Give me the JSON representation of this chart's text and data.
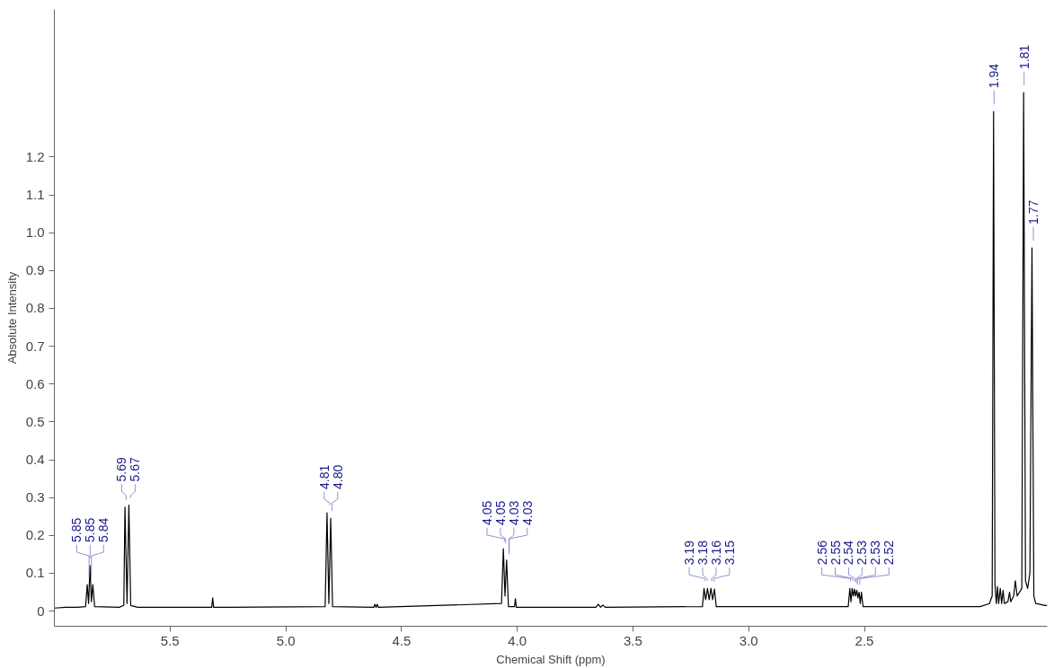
{
  "chart_data": {
    "type": "line",
    "xlabel": "Chemical Shift (ppm)",
    "ylabel": "Absolute Intensity",
    "xlim": [
      6.0,
      1.71
    ],
    "ylim": [
      -0.04,
      1.59
    ],
    "xticks": [
      5.5,
      {
        "value": 5,
        "label": "5.0"
      },
      4.5,
      {
        "value": 4,
        "label": "4.0"
      },
      3.5,
      {
        "value": 3,
        "label": "3.0"
      },
      2.5
    ],
    "yticks": [
      0,
      0.1,
      0.2,
      0.3,
      0.4,
      0.5,
      0.6,
      0.7,
      0.8,
      0.9,
      {
        "value": 1,
        "label": "1.0"
      },
      1.1,
      1.2
    ],
    "grid": false,
    "line_style": "solid",
    "marker": "none",
    "series": [
      {
        "color": "#000000",
        "x": [
          6.0,
          5.95,
          5.9,
          5.865,
          5.858,
          5.852,
          5.846,
          5.84,
          5.834,
          5.826,
          5.72,
          5.7,
          5.695,
          5.686,
          5.678,
          5.67,
          5.64,
          5.32,
          5.316,
          5.312,
          4.83,
          4.822,
          4.814,
          4.806,
          4.798,
          4.62,
          4.615,
          4.61,
          4.605,
          4.6,
          4.068,
          4.06,
          4.053,
          4.046,
          4.038,
          4.012,
          4.008,
          4.004,
          3.66,
          3.65,
          3.64,
          3.63,
          3.62,
          3.2,
          3.193,
          3.186,
          3.178,
          3.171,
          3.163,
          3.156,
          3.148,
          3.14,
          2.57,
          2.563,
          2.558,
          2.553,
          2.548,
          2.543,
          2.538,
          2.533,
          2.528,
          2.523,
          2.518,
          2.513,
          2.506,
          2.0,
          1.96,
          1.948,
          1.942,
          1.936,
          1.93,
          1.925,
          1.92,
          1.913,
          1.907,
          1.901,
          1.895,
          1.88,
          1.873,
          1.868,
          1.855,
          1.848,
          1.84,
          1.82,
          1.812,
          1.804,
          1.795,
          1.785,
          1.776,
          1.768,
          1.76,
          1.74,
          1.72,
          1.71
        ],
        "values": [
          0.008,
          0.01,
          0.01,
          0.012,
          0.07,
          0.02,
          0.12,
          0.025,
          0.07,
          0.012,
          0.01,
          0.015,
          0.275,
          0.02,
          0.28,
          0.015,
          0.01,
          0.01,
          0.035,
          0.01,
          0.012,
          0.26,
          0.02,
          0.245,
          0.012,
          0.01,
          0.018,
          0.01,
          0.018,
          0.01,
          0.02,
          0.165,
          0.04,
          0.135,
          0.012,
          0.012,
          0.033,
          0.01,
          0.01,
          0.018,
          0.01,
          0.016,
          0.01,
          0.012,
          0.06,
          0.03,
          0.06,
          0.03,
          0.06,
          0.03,
          0.058,
          0.012,
          0.012,
          0.06,
          0.025,
          0.06,
          0.04,
          0.058,
          0.04,
          0.055,
          0.035,
          0.05,
          0.02,
          0.05,
          0.012,
          0.012,
          0.02,
          0.04,
          1.32,
          0.07,
          0.02,
          0.065,
          0.02,
          0.06,
          0.02,
          0.055,
          0.02,
          0.025,
          0.05,
          0.025,
          0.04,
          0.08,
          0.04,
          0.06,
          1.37,
          0.08,
          0.06,
          0.1,
          0.96,
          0.04,
          0.02,
          0.018,
          0.015,
          0.015
        ]
      }
    ],
    "annotations": [
      {
        "text": "5.85",
        "x": 5.85,
        "y": 0.07
      },
      {
        "text": "5.85",
        "x": 5.846,
        "y": 0.12
      },
      {
        "text": "5.84",
        "x": 5.84,
        "y": 0.07
      },
      {
        "text": "5.69",
        "x": 5.69,
        "y": 0.275
      },
      {
        "text": "5.67",
        "x": 5.67,
        "y": 0.28
      },
      {
        "text": "4.81",
        "x": 4.81,
        "y": 0.26
      },
      {
        "text": "4.80",
        "x": 4.8,
        "y": 0.245
      },
      {
        "text": "4.05",
        "x": 4.055,
        "y": 0.165
      },
      {
        "text": "4.05",
        "x": 4.05,
        "y": 0.16
      },
      {
        "text": "4.03",
        "x": 4.035,
        "y": 0.135
      },
      {
        "text": "4.03",
        "x": 4.035,
        "y": 0.13
      },
      {
        "text": "3.19",
        "x": 3.19,
        "y": 0.06
      },
      {
        "text": "3.18",
        "x": 3.18,
        "y": 0.06
      },
      {
        "text": "3.16",
        "x": 3.16,
        "y": 0.06
      },
      {
        "text": "3.15",
        "x": 3.15,
        "y": 0.058
      },
      {
        "text": "2.56",
        "x": 2.56,
        "y": 0.06
      },
      {
        "text": "2.55",
        "x": 2.55,
        "y": 0.06
      },
      {
        "text": "2.54",
        "x": 2.54,
        "y": 0.058
      },
      {
        "text": "2.53",
        "x": 2.535,
        "y": 0.055
      },
      {
        "text": "2.53",
        "x": 2.53,
        "y": 0.05
      },
      {
        "text": "2.52",
        "x": 2.52,
        "y": 0.05
      },
      {
        "text": "1.94",
        "x": 1.94,
        "y": 1.32
      },
      {
        "text": "1.81",
        "x": 1.81,
        "y": 1.37
      },
      {
        "text": "1.77",
        "x": 1.77,
        "y": 0.96
      }
    ]
  }
}
